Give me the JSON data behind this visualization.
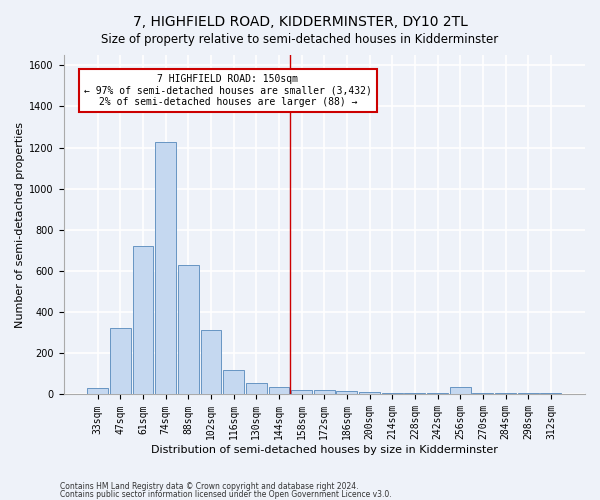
{
  "title": "7, HIGHFIELD ROAD, KIDDERMINSTER, DY10 2TL",
  "subtitle": "Size of property relative to semi-detached houses in Kidderminster",
  "xlabel": "Distribution of semi-detached houses by size in Kidderminster",
  "ylabel": "Number of semi-detached properties",
  "categories": [
    "33sqm",
    "47sqm",
    "61sqm",
    "74sqm",
    "88sqm",
    "102sqm",
    "116sqm",
    "130sqm",
    "144sqm",
    "158sqm",
    "172sqm",
    "186sqm",
    "200sqm",
    "214sqm",
    "228sqm",
    "242sqm",
    "256sqm",
    "270sqm",
    "284sqm",
    "298sqm",
    "312sqm"
  ],
  "values": [
    30,
    325,
    720,
    1225,
    630,
    315,
    120,
    55,
    35,
    20,
    20,
    15,
    10,
    5,
    5,
    5,
    35,
    5,
    5,
    5,
    5
  ],
  "bar_color": "#c5d8f0",
  "bar_edge_color": "#5588bb",
  "annotation_title": "7 HIGHFIELD ROAD: 150sqm",
  "annotation_line1": "← 97% of semi-detached houses are smaller (3,432)",
  "annotation_line2": "2% of semi-detached houses are larger (88) →",
  "annotation_box_color": "#ffffff",
  "annotation_box_edge": "#cc0000",
  "vline_color": "#cc0000",
  "ylim": [
    0,
    1650
  ],
  "yticks": [
    0,
    200,
    400,
    600,
    800,
    1000,
    1200,
    1400,
    1600
  ],
  "footer1": "Contains HM Land Registry data © Crown copyright and database right 2024.",
  "footer2": "Contains public sector information licensed under the Open Government Licence v3.0.",
  "background_color": "#eef2f9",
  "plot_bg_color": "#eef2f9",
  "grid_color": "#ffffff",
  "title_fontsize": 10,
  "subtitle_fontsize": 8.5,
  "axis_label_fontsize": 8,
  "tick_fontsize": 7,
  "footer_fontsize": 5.5
}
